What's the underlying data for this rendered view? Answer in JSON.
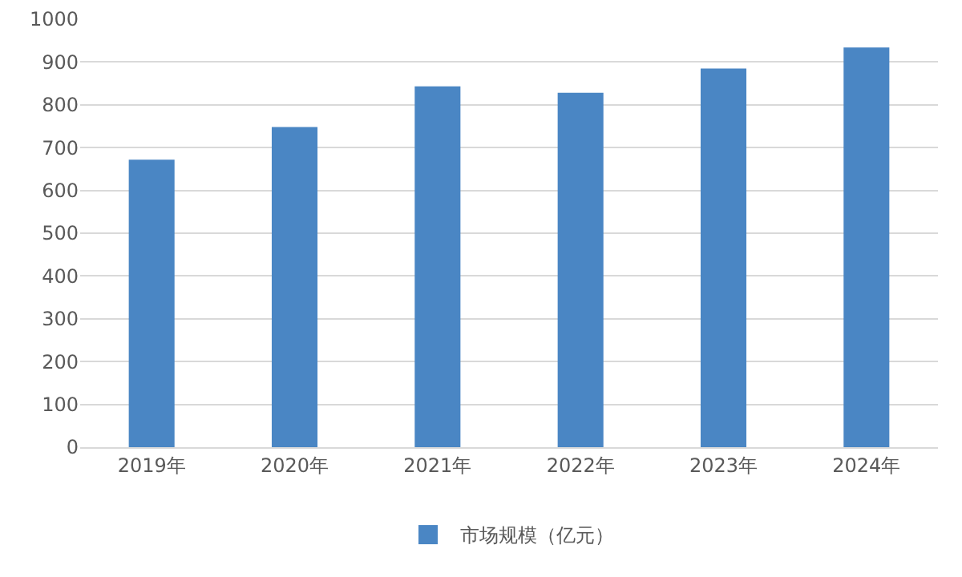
{
  "chart_data": {
    "type": "bar",
    "categories": [
      "2019年",
      "2020年",
      "2021年",
      "2022年",
      "2023年",
      "2024年"
    ],
    "series": [
      {
        "name": "市场规模（亿元）",
        "color": "#4a86c4",
        "values": [
          672,
          748,
          843,
          828,
          885,
          934
        ]
      }
    ],
    "ylim": [
      0,
      1000
    ],
    "yticks": [
      0,
      100,
      200,
      300,
      400,
      500,
      600,
      700,
      800,
      900,
      1000
    ],
    "grid": "y",
    "legend": "bottom"
  }
}
